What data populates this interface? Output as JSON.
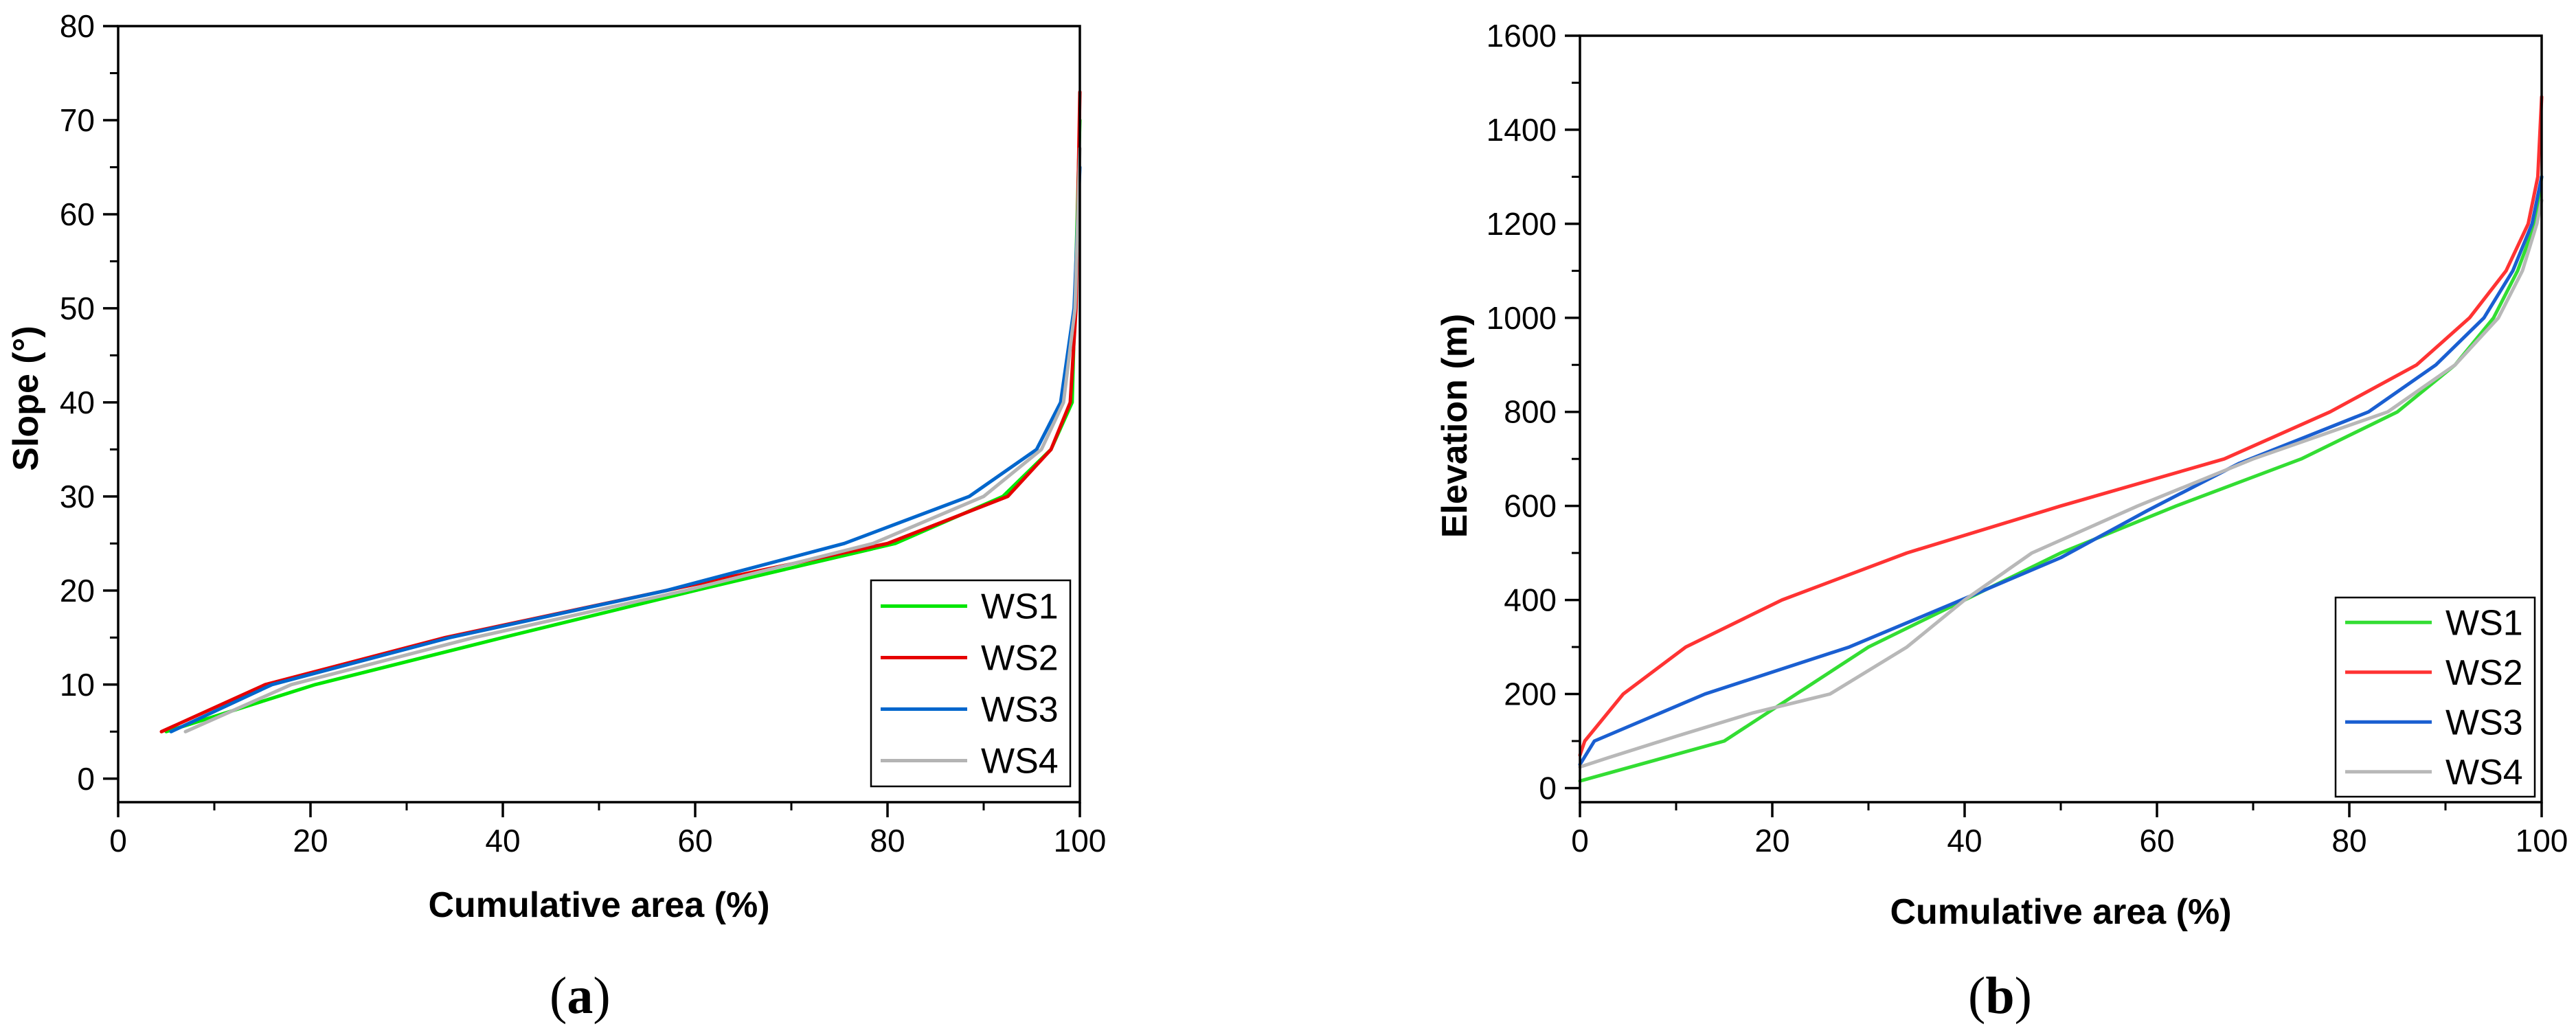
{
  "chart_data": [
    {
      "type": "line",
      "panel_label": "a",
      "title": "",
      "xlabel": "Cumulative area (%)",
      "ylabel": "Slope (°)",
      "xlim": [
        0,
        100
      ],
      "ylim": [
        -2.5,
        80
      ],
      "x_ticks": [
        0,
        20,
        40,
        60,
        80,
        100
      ],
      "y_ticks": [
        0,
        10,
        20,
        30,
        40,
        50,
        60,
        70,
        80
      ],
      "legend_position": "bottom-right",
      "grid": false,
      "series": [
        {
          "name": "WS1",
          "color": "#00e600",
          "x": [
            5,
            20.5,
            40,
            60,
            80.8,
            92,
            97,
            99.2,
            100
          ],
          "y": [
            5,
            10,
            15,
            20,
            25,
            30,
            35,
            40,
            70
          ]
        },
        {
          "name": "WS2",
          "color": "#e60000",
          "x": [
            4.5,
            15.3,
            34,
            57,
            80,
            92.5,
            97,
            99,
            99.6,
            100
          ],
          "y": [
            5,
            10,
            15,
            20,
            25,
            30,
            35,
            40,
            50,
            73
          ]
        },
        {
          "name": "WS3",
          "color": "#0066cc",
          "x": [
            5.5,
            16,
            34.5,
            57,
            75.5,
            88.5,
            95.5,
            98,
            99.4,
            100
          ],
          "y": [
            5,
            10,
            15,
            20,
            25,
            30,
            35,
            40,
            50,
            65
          ]
        },
        {
          "name": "WS4",
          "color": "#b4b4b4",
          "x": [
            7,
            18,
            37,
            59,
            78.5,
            90,
            96,
            98.3,
            99.5,
            100
          ],
          "y": [
            5,
            10,
            15,
            20,
            25,
            30,
            35,
            40,
            50,
            67
          ]
        }
      ]
    },
    {
      "type": "line",
      "panel_label": "b",
      "title": "",
      "xlabel": "Cumulative area (%)",
      "ylabel": "Elevation (m)",
      "xlim": [
        0,
        100
      ],
      "ylim": [
        -30,
        1600
      ],
      "x_ticks": [
        0,
        20,
        40,
        60,
        80,
        100
      ],
      "y_ticks": [
        0,
        200,
        400,
        600,
        800,
        1000,
        1200,
        1400,
        1600
      ],
      "legend_position": "bottom-right",
      "grid": false,
      "series": [
        {
          "name": "WS1",
          "color": "#33dd33",
          "x": [
            0,
            15,
            30,
            40,
            50,
            62,
            75,
            85,
            91,
            95,
            97.5,
            99.3,
            100
          ],
          "y": [
            15,
            100,
            300,
            400,
            500,
            600,
            700,
            800,
            900,
            1000,
            1100,
            1200,
            1300
          ]
        },
        {
          "name": "WS2",
          "color": "#ff3333",
          "x": [
            0,
            0.5,
            4.5,
            11,
            21,
            34,
            50,
            67,
            78,
            87,
            92.5,
            96.3,
            98.6,
            99.6,
            100
          ],
          "y": [
            70,
            100,
            200,
            300,
            400,
            500,
            600,
            700,
            800,
            900,
            1000,
            1100,
            1200,
            1300,
            1470
          ]
        },
        {
          "name": "WS3",
          "color": "#1a5fd1",
          "x": [
            0,
            1.5,
            13,
            28,
            38.5,
            50,
            59,
            68.5,
            82,
            89,
            94,
            97,
            99,
            100
          ],
          "y": [
            50,
            100,
            200,
            300,
            390,
            490,
            590,
            690,
            800,
            900,
            1000,
            1100,
            1200,
            1300
          ]
        },
        {
          "name": "WS4",
          "color": "#b8b8b8",
          "x": [
            0,
            3,
            10,
            18,
            26,
            34,
            40,
            47,
            58,
            70,
            84,
            91,
            95.5,
            98,
            99.5,
            100
          ],
          "y": [
            45,
            65,
            110,
            160,
            200,
            300,
            400,
            500,
            600,
            700,
            800,
            900,
            1000,
            1100,
            1200,
            1250
          ]
        }
      ]
    }
  ]
}
